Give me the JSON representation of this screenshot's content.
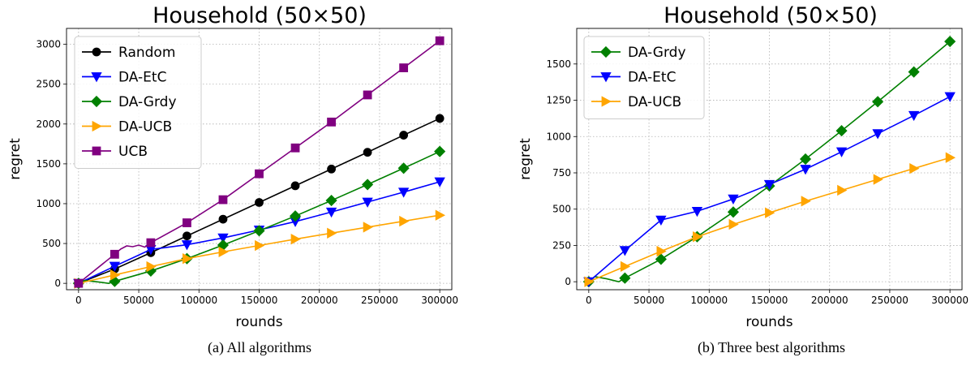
{
  "chart_data": [
    {
      "type": "line",
      "title": "Household (50×50)",
      "caption": "(a) All algorithms",
      "xlabel": "rounds",
      "ylabel": "regret",
      "xlim": [
        -10000,
        310000
      ],
      "ylim": [
        -80,
        3200
      ],
      "xticks": [
        0,
        50000,
        100000,
        150000,
        200000,
        250000,
        300000
      ],
      "yticks": [
        0,
        500,
        1000,
        1500,
        2000,
        2500,
        3000
      ],
      "grid": true,
      "legend_position": "top-left",
      "series": [
        {
          "name": "Random",
          "color": "#000000",
          "marker": "circle",
          "x": [
            0,
            30000,
            60000,
            90000,
            120000,
            150000,
            180000,
            210000,
            240000,
            270000,
            300000
          ],
          "y": [
            0,
            180,
            385,
            595,
            805,
            1015,
            1225,
            1435,
            1645,
            1860,
            2070
          ]
        },
        {
          "name": "DA-EtC",
          "color": "#0000ff",
          "marker": "triangle-down",
          "x": [
            0,
            30000,
            45000,
            60000,
            90000,
            120000,
            150000,
            180000,
            210000,
            240000,
            270000,
            300000
          ],
          "y": [
            0,
            215,
            320,
            425,
            485,
            570,
            670,
            775,
            895,
            1020,
            1145,
            1275
          ]
        },
        {
          "name": "DA-Grdy",
          "color": "#008000",
          "marker": "diamond",
          "x": [
            0,
            5000,
            15000,
            25000,
            30000,
            60000,
            90000,
            120000,
            150000,
            180000,
            210000,
            240000,
            270000,
            300000
          ],
          "y": [
            0,
            35,
            20,
            0,
            25,
            155,
            310,
            480,
            660,
            845,
            1040,
            1240,
            1445,
            1655
          ]
        },
        {
          "name": "DA-UCB",
          "color": "#ffa500",
          "marker": "triangle-right",
          "x": [
            0,
            30000,
            60000,
            90000,
            120000,
            150000,
            180000,
            210000,
            240000,
            270000,
            300000
          ],
          "y": [
            0,
            105,
            210,
            310,
            395,
            475,
            555,
            630,
            705,
            780,
            855
          ]
        },
        {
          "name": "UCB",
          "color": "#800080",
          "marker": "square",
          "x": [
            0,
            30000,
            35000,
            40000,
            45000,
            50000,
            55000,
            60000,
            90000,
            120000,
            150000,
            180000,
            210000,
            240000,
            270000,
            300000
          ],
          "y": [
            0,
            365,
            430,
            470,
            460,
            480,
            455,
            510,
            760,
            1050,
            1375,
            1700,
            2025,
            2365,
            2705,
            3045
          ]
        }
      ]
    },
    {
      "type": "line",
      "title": "Household (50×50)",
      "caption": "(b) Three best algorithms",
      "xlabel": "rounds",
      "ylabel": "regret",
      "xlim": [
        -10000,
        310000
      ],
      "ylim": [
        -55,
        1745
      ],
      "xticks": [
        0,
        50000,
        100000,
        150000,
        200000,
        250000,
        300000
      ],
      "yticks": [
        0,
        250,
        500,
        750,
        1000,
        1250,
        1500
      ],
      "grid": true,
      "legend_position": "top-left",
      "series": [
        {
          "name": "DA-Grdy",
          "color": "#008000",
          "marker": "diamond",
          "x": [
            0,
            5000,
            15000,
            25000,
            30000,
            60000,
            90000,
            120000,
            150000,
            180000,
            210000,
            240000,
            270000,
            300000
          ],
          "y": [
            0,
            35,
            20,
            0,
            25,
            155,
            310,
            480,
            660,
            845,
            1040,
            1240,
            1445,
            1655
          ]
        },
        {
          "name": "DA-EtC",
          "color": "#0000ff",
          "marker": "triangle-down",
          "x": [
            0,
            30000,
            45000,
            60000,
            90000,
            120000,
            150000,
            180000,
            210000,
            240000,
            270000,
            300000
          ],
          "y": [
            0,
            215,
            320,
            425,
            485,
            570,
            670,
            775,
            895,
            1020,
            1145,
            1275
          ]
        },
        {
          "name": "DA-UCB",
          "color": "#ffa500",
          "marker": "triangle-right",
          "x": [
            0,
            30000,
            60000,
            90000,
            120000,
            150000,
            180000,
            210000,
            240000,
            270000,
            300000
          ],
          "y": [
            0,
            105,
            210,
            310,
            395,
            475,
            555,
            630,
            705,
            780,
            855
          ]
        }
      ]
    }
  ]
}
